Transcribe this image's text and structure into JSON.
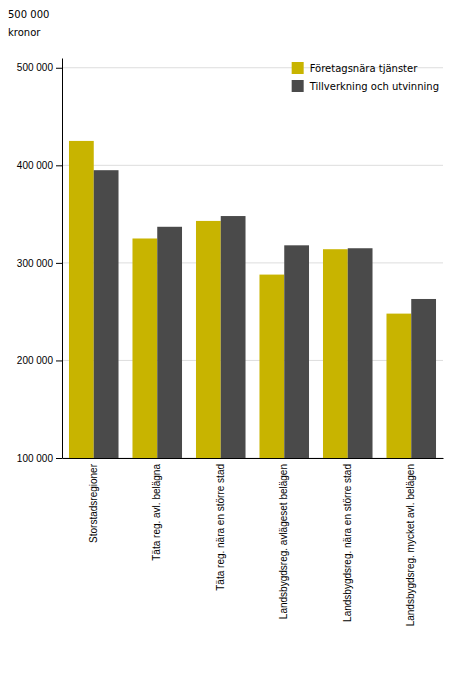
{
  "chart_data": {
    "type": "bar",
    "categories": [
      "Storstadsregioner",
      "Täta reg. avl. belägna",
      "Täta reg. nära en större stad",
      "Landsbygdsreg. avlägeset belägen",
      "Landsbygdsreg. nära en större stad",
      "Landsbygdsreg. mycket avl. belägen"
    ],
    "series": [
      {
        "name": "Företagsnära tjänster",
        "color": "#C8B400",
        "values": [
          425000,
          325000,
          343000,
          288000,
          314000,
          248000
        ]
      },
      {
        "name": "Tillverkning och utvinning",
        "color": "#4A4A4A",
        "values": [
          395000,
          337000,
          348000,
          318000,
          315000,
          263000
        ]
      }
    ],
    "ylabel": "kronor",
    "annotations": [
      "500 000"
    ],
    "ylim": [
      100000,
      510000
    ],
    "yticks": [
      {
        "value": 100000,
        "label": "100 000"
      },
      {
        "value": 200000,
        "label": "200 000"
      },
      {
        "value": 300000,
        "label": "300 000"
      },
      {
        "value": 400000,
        "label": "400 000"
      },
      {
        "value": 500000,
        "label": "500 000"
      }
    ],
    "grid": true,
    "legend": "upper right"
  }
}
